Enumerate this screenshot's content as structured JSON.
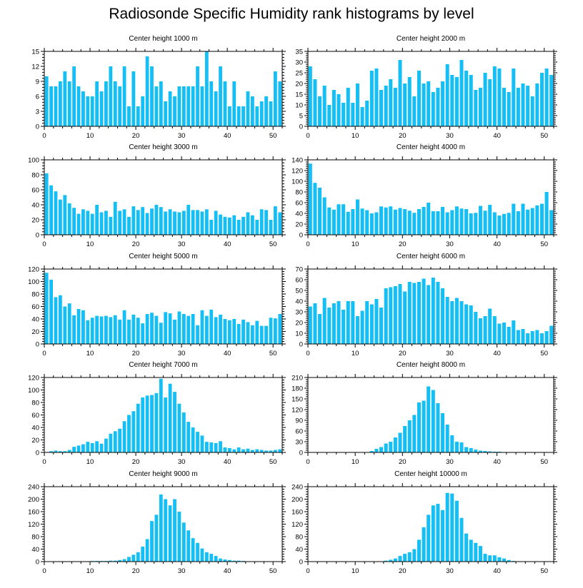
{
  "figure": {
    "title": "Radiosonde Specific Humidity rank histograms by level"
  },
  "colors": {
    "bar": "#14bff5",
    "axis": "#000000",
    "background": "#ffffff"
  },
  "chart_data": [
    {
      "type": "bar",
      "title": "Center height 1000 m",
      "xlim": [
        0,
        52
      ],
      "xticks": [
        0,
        10,
        20,
        30,
        40,
        50
      ],
      "ylim": [
        0,
        15
      ],
      "yticks": [
        0,
        3,
        6,
        9,
        12,
        15
      ],
      "values": [
        10,
        8,
        8,
        9,
        11,
        9,
        12,
        8,
        7,
        6,
        6,
        9,
        7,
        9,
        12,
        9,
        8,
        12,
        4,
        11,
        4,
        6,
        14,
        12,
        8,
        9,
        5,
        7,
        6,
        8,
        8,
        8,
        8,
        12,
        8,
        15,
        9,
        7,
        12,
        9,
        4,
        9,
        4,
        4,
        7,
        6,
        4,
        5,
        6,
        5,
        11,
        9
      ]
    },
    {
      "type": "bar",
      "title": "Center height 2000 m",
      "xlim": [
        0,
        52
      ],
      "xticks": [
        0,
        10,
        20,
        30,
        40,
        50
      ],
      "ylim": [
        0,
        35
      ],
      "yticks": [
        0,
        5,
        10,
        15,
        20,
        25,
        30,
        35
      ],
      "values": [
        28,
        22,
        14,
        19,
        10,
        17,
        15,
        11,
        18,
        11,
        20,
        9,
        12,
        26,
        27,
        17,
        19,
        22,
        18,
        31,
        20,
        23,
        14,
        26,
        20,
        21,
        16,
        18,
        21,
        29,
        24,
        23,
        31,
        26,
        24,
        17,
        18,
        25,
        22,
        28,
        27,
        18,
        16,
        27,
        18,
        20,
        19,
        14,
        20,
        25,
        27,
        24
      ]
    },
    {
      "type": "bar",
      "title": "Center height 3000 m",
      "xlim": [
        0,
        52
      ],
      "xticks": [
        0,
        10,
        20,
        30,
        40,
        50
      ],
      "ylim": [
        0,
        100
      ],
      "yticks": [
        0,
        20,
        40,
        60,
        80,
        100
      ],
      "values": [
        82,
        66,
        58,
        47,
        53,
        42,
        36,
        28,
        34,
        32,
        28,
        40,
        30,
        32,
        24,
        44,
        32,
        34,
        24,
        38,
        33,
        37,
        29,
        35,
        40,
        37,
        31,
        34,
        31,
        30,
        32,
        40,
        33,
        33,
        31,
        34,
        20,
        32,
        27,
        24,
        23,
        26,
        20,
        24,
        30,
        26,
        20,
        34,
        33,
        20,
        38,
        30
      ]
    },
    {
      "type": "bar",
      "title": "Center height 4000 m",
      "xlim": [
        0,
        52
      ],
      "xticks": [
        0,
        10,
        20,
        30,
        40,
        50
      ],
      "ylim": [
        0,
        140
      ],
      "yticks": [
        0,
        20,
        40,
        60,
        80,
        100,
        120,
        140
      ],
      "values": [
        133,
        97,
        88,
        70,
        51,
        47,
        57,
        57,
        43,
        48,
        66,
        49,
        46,
        40,
        42,
        53,
        51,
        53,
        47,
        50,
        48,
        45,
        41,
        48,
        52,
        60,
        44,
        44,
        52,
        42,
        46,
        53,
        49,
        48,
        40,
        41,
        54,
        45,
        56,
        42,
        36,
        39,
        41,
        58,
        44,
        58,
        47,
        50,
        55,
        58,
        80,
        46
      ]
    },
    {
      "type": "bar",
      "title": "Center height 5000 m",
      "xlim": [
        0,
        52
      ],
      "xticks": [
        0,
        10,
        20,
        30,
        40,
        50
      ],
      "ylim": [
        0,
        120
      ],
      "yticks": [
        0,
        20,
        40,
        60,
        80,
        100,
        120
      ],
      "values": [
        114,
        103,
        75,
        78,
        60,
        65,
        46,
        56,
        54,
        38,
        42,
        45,
        44,
        45,
        43,
        46,
        39,
        54,
        39,
        47,
        42,
        33,
        48,
        50,
        45,
        34,
        51,
        49,
        39,
        52,
        48,
        45,
        48,
        30,
        54,
        45,
        55,
        43,
        47,
        40,
        38,
        40,
        32,
        39,
        35,
        30,
        37,
        29,
        29,
        42,
        41,
        48
      ]
    },
    {
      "type": "bar",
      "title": "Center height 6000 m",
      "xlim": [
        0,
        52
      ],
      "xticks": [
        0,
        10,
        20,
        30,
        40,
        50
      ],
      "ylim": [
        0,
        70
      ],
      "yticks": [
        0,
        10,
        20,
        30,
        40,
        50,
        60,
        70
      ],
      "values": [
        35,
        38,
        28,
        43,
        34,
        38,
        40,
        32,
        40,
        40,
        26,
        31,
        40,
        37,
        42,
        34,
        52,
        53,
        54,
        56,
        49,
        58,
        57,
        58,
        61,
        55,
        62,
        58,
        52,
        44,
        40,
        43,
        40,
        37,
        36,
        30,
        24,
        26,
        33,
        26,
        19,
        20,
        16,
        22,
        13,
        14,
        10,
        12,
        13,
        10,
        12,
        17
      ]
    },
    {
      "type": "bar",
      "title": "Center height 7000 m",
      "xlim": [
        0,
        52
      ],
      "xticks": [
        0,
        10,
        20,
        30,
        40,
        50
      ],
      "ylim": [
        0,
        120
      ],
      "yticks": [
        0,
        20,
        40,
        60,
        80,
        100,
        120
      ],
      "values": [
        0,
        2,
        3,
        2,
        2,
        4,
        9,
        11,
        13,
        17,
        15,
        18,
        14,
        22,
        30,
        34,
        38,
        50,
        60,
        66,
        78,
        88,
        91,
        92,
        95,
        118,
        88,
        110,
        97,
        78,
        64,
        49,
        40,
        33,
        27,
        17,
        16,
        15,
        18,
        8,
        7,
        5,
        8,
        5,
        6,
        4,
        5,
        4,
        3,
        3,
        4,
        5
      ]
    },
    {
      "type": "bar",
      "title": "Center height 8000 m",
      "xlim": [
        0,
        52
      ],
      "xticks": [
        0,
        10,
        20,
        30,
        40,
        50
      ],
      "ylim": [
        0,
        210
      ],
      "yticks": [
        0,
        30,
        60,
        90,
        120,
        150,
        180,
        210
      ],
      "values": [
        0,
        0,
        0,
        0,
        0,
        0,
        0,
        0,
        0,
        0,
        0,
        0,
        0,
        4,
        10,
        15,
        25,
        30,
        42,
        55,
        74,
        90,
        105,
        140,
        145,
        185,
        175,
        138,
        110,
        78,
        48,
        30,
        28,
        15,
        12,
        8,
        5,
        4,
        3,
        2,
        2,
        1,
        1,
        1,
        0,
        0,
        0,
        1,
        1,
        0,
        0,
        0
      ]
    },
    {
      "type": "bar",
      "title": "Center height 9000 m",
      "xlim": [
        0,
        52
      ],
      "xticks": [
        0,
        10,
        20,
        30,
        40,
        50
      ],
      "ylim": [
        0,
        240
      ],
      "yticks": [
        0,
        40,
        80,
        120,
        160,
        200,
        240
      ],
      "values": [
        0,
        0,
        0,
        0,
        0,
        0,
        0,
        0,
        1,
        1,
        2,
        2,
        2,
        2,
        3,
        3,
        5,
        8,
        15,
        22,
        30,
        48,
        72,
        130,
        150,
        215,
        200,
        180,
        200,
        160,
        125,
        100,
        75,
        60,
        42,
        30,
        25,
        18,
        10,
        7,
        5,
        3,
        3,
        2,
        1,
        1,
        1,
        0,
        0,
        0,
        0,
        0
      ]
    },
    {
      "type": "bar",
      "title": "Center height 10000 m",
      "xlim": [
        0,
        52
      ],
      "xticks": [
        0,
        10,
        20,
        30,
        40,
        50
      ],
      "ylim": [
        0,
        240
      ],
      "yticks": [
        0,
        40,
        80,
        120,
        160,
        200,
        240
      ],
      "values": [
        0,
        0,
        0,
        0,
        0,
        0,
        0,
        0,
        0,
        0,
        0,
        0,
        0,
        0,
        0,
        1,
        3,
        6,
        10,
        18,
        25,
        30,
        40,
        70,
        110,
        150,
        180,
        185,
        165,
        220,
        218,
        195,
        140,
        90,
        70,
        60,
        50,
        25,
        20,
        20,
        14,
        10,
        5,
        2,
        1,
        1,
        0,
        0,
        0,
        0,
        0,
        0
      ]
    }
  ]
}
